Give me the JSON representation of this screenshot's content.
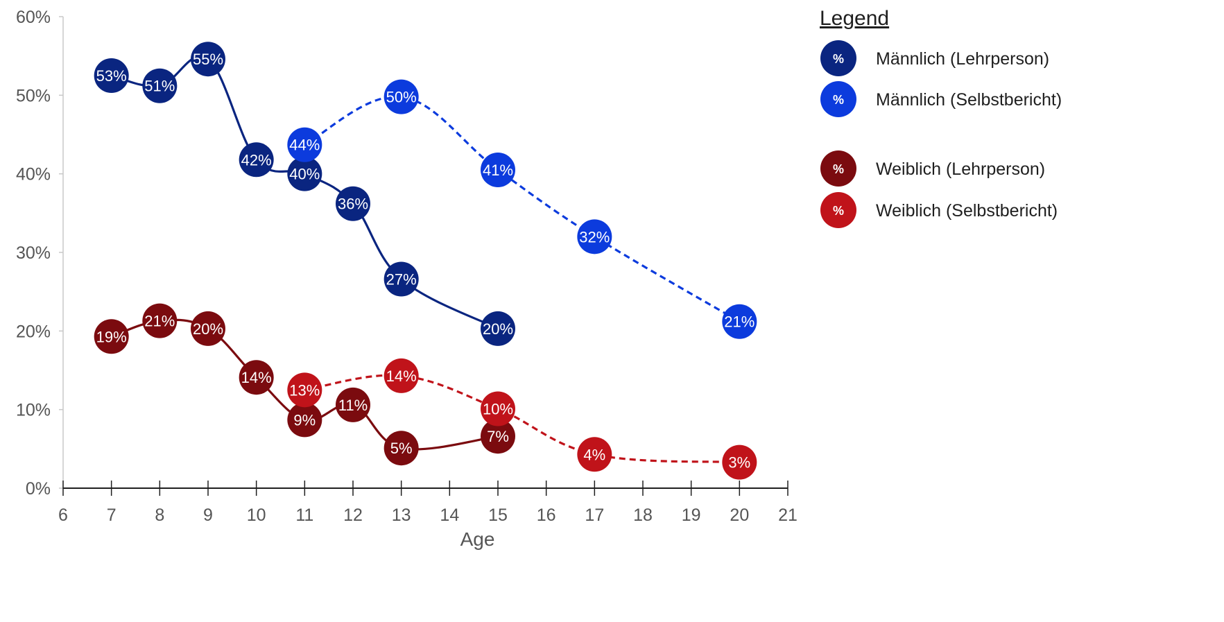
{
  "chart_data": {
    "type": "line",
    "title": "",
    "xlabel": "Age",
    "ylabel": "",
    "xlim": [
      6,
      21
    ],
    "ylim": [
      0,
      60
    ],
    "x_ticks": [
      "6",
      "7",
      "8",
      "9",
      "10",
      "11",
      "12",
      "13",
      "14",
      "15",
      "16",
      "17",
      "18",
      "19",
      "20",
      "21"
    ],
    "y_ticks": [
      "0%",
      "10%",
      "20%",
      "30%",
      "40%",
      "50%",
      "60%"
    ],
    "grid": false,
    "legend": {
      "title": "Legend",
      "placement": "right",
      "symbol": "%"
    },
    "series": [
      {
        "name": "Männlich (Lehrperson)",
        "color": "#0a2580",
        "style": "solid",
        "points": [
          {
            "x": 7,
            "y": 52.5,
            "label": "53%"
          },
          {
            "x": 8,
            "y": 51.2,
            "label": "51%"
          },
          {
            "x": 9,
            "y": 54.6,
            "label": "55%"
          },
          {
            "x": 10,
            "y": 41.8,
            "label": "42%"
          },
          {
            "x": 11,
            "y": 40.0,
            "label": "40%"
          },
          {
            "x": 12,
            "y": 36.2,
            "label": "36%"
          },
          {
            "x": 13,
            "y": 26.6,
            "label": "27%"
          },
          {
            "x": 15,
            "y": 20.3,
            "label": "20%"
          }
        ]
      },
      {
        "name": "Männlich (Selbstbericht)",
        "color": "#0c3bdd",
        "style": "dashed",
        "points": [
          {
            "x": 11,
            "y": 43.7,
            "label": "44%"
          },
          {
            "x": 13,
            "y": 49.8,
            "label": "50%"
          },
          {
            "x": 15,
            "y": 40.5,
            "label": "41%"
          },
          {
            "x": 17,
            "y": 32.0,
            "label": "32%"
          },
          {
            "x": 20,
            "y": 21.2,
            "label": "21%"
          }
        ]
      },
      {
        "name": "Weiblich (Lehrperson)",
        "color": "#7b0b0f",
        "style": "solid",
        "points": [
          {
            "x": 7,
            "y": 19.3,
            "label": "19%"
          },
          {
            "x": 8,
            "y": 21.3,
            "label": "21%"
          },
          {
            "x": 9,
            "y": 20.3,
            "label": "20%"
          },
          {
            "x": 10,
            "y": 14.1,
            "label": "14%"
          },
          {
            "x": 11,
            "y": 8.7,
            "label": "9%"
          },
          {
            "x": 12,
            "y": 10.6,
            "label": "11%"
          },
          {
            "x": 13,
            "y": 5.1,
            "label": "5%"
          },
          {
            "x": 15,
            "y": 6.6,
            "label": "7%"
          }
        ]
      },
      {
        "name": "Weiblich (Selbstbericht)",
        "color": "#c0131a",
        "style": "dashed",
        "points": [
          {
            "x": 11,
            "y": 12.5,
            "label": "13%"
          },
          {
            "x": 13,
            "y": 14.3,
            "label": "14%"
          },
          {
            "x": 15,
            "y": 10.1,
            "label": "10%"
          },
          {
            "x": 17,
            "y": 4.3,
            "label": "4%"
          },
          {
            "x": 20,
            "y": 3.3,
            "label": "3%"
          }
        ]
      }
    ]
  }
}
